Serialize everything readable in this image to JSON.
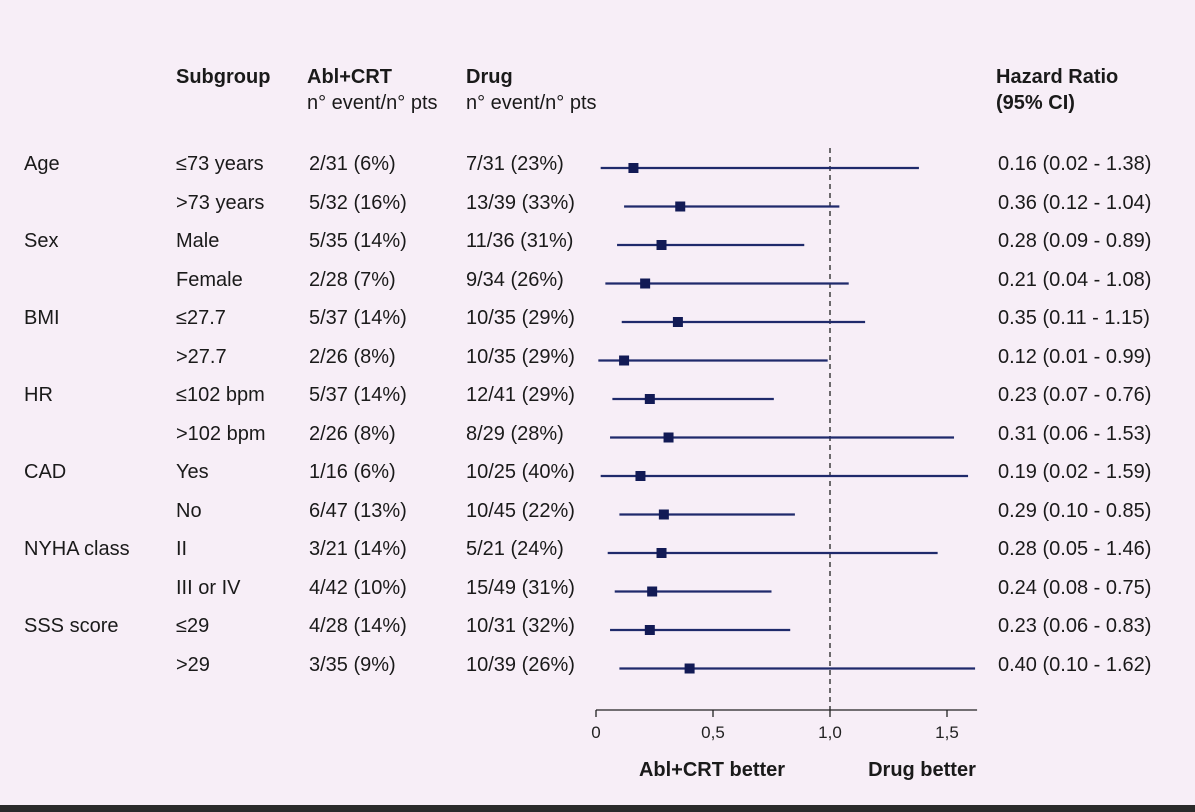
{
  "headers": {
    "subgroup": "Subgroup",
    "abl_title": "Abl+CRT",
    "abl_sub": "n° event/n° pts",
    "drug_title": "Drug",
    "drug_sub": "n° event/n° pts",
    "hr_title": "Hazard Ratio",
    "hr_sub": "(95% CI)"
  },
  "rows": [
    {
      "group": "Age",
      "subgroup": "≤73 years",
      "abl": "2/31 (6%)",
      "drug": "7/31 (23%)",
      "hr_text": "0.16 (0.02 - 1.38)"
    },
    {
      "group": "",
      "subgroup": ">73 years",
      "abl": "5/32 (16%)",
      "drug": "13/39 (33%)",
      "hr_text": "0.36 (0.12 - 1.04)"
    },
    {
      "group": "Sex",
      "subgroup": "Male",
      "abl": "5/35 (14%)",
      "drug": "11/36 (31%)",
      "hr_text": "0.28 (0.09 - 0.89)"
    },
    {
      "group": "",
      "subgroup": "Female",
      "abl": "2/28 (7%)",
      "drug": "9/34 (26%)",
      "hr_text": "0.21 (0.04 - 1.08)"
    },
    {
      "group": "BMI",
      "subgroup": "≤27.7",
      "abl": "5/37 (14%)",
      "drug": "10/35 (29%)",
      "hr_text": "0.35 (0.11 - 1.15)"
    },
    {
      "group": "",
      "subgroup": ">27.7",
      "abl": "2/26 (8%)",
      "drug": "10/35 (29%)",
      "hr_text": "0.12 (0.01 - 0.99)"
    },
    {
      "group": "HR",
      "subgroup": "≤102 bpm",
      "abl": "5/37 (14%)",
      "drug": "12/41 (29%)",
      "hr_text": "0.23 (0.07 - 0.76)"
    },
    {
      "group": "",
      "subgroup": ">102 bpm",
      "abl": "2/26 (8%)",
      "drug": "8/29 (28%)",
      "hr_text": "0.31 (0.06 - 1.53)"
    },
    {
      "group": "CAD",
      "subgroup": "Yes",
      "abl": "1/16 (6%)",
      "drug": "10/25 (40%)",
      "hr_text": "0.19 (0.02 - 1.59)"
    },
    {
      "group": "",
      "subgroup": "No",
      "abl": "6/47 (13%)",
      "drug": "10/45 (22%)",
      "hr_text": "0.29 (0.10 - 0.85)"
    },
    {
      "group": "NYHA class",
      "subgroup": "II",
      "abl": "3/21 (14%)",
      "drug": "5/21 (24%)",
      "hr_text": "0.28 (0.05 - 1.46)"
    },
    {
      "group": "",
      "subgroup": "III or IV",
      "abl": "4/42 (10%)",
      "drug": "15/49 (31%)",
      "hr_text": "0.24 (0.08 - 0.75)"
    },
    {
      "group": "SSS score",
      "subgroup": "≤29",
      "abl": "4/28 (14%)",
      "drug": "10/31 (32%)",
      "hr_text": "0.23 (0.06 - 0.83)"
    },
    {
      "group": "",
      "subgroup": ">29",
      "abl": "3/35 (9%)",
      "drug": "10/39 (26%)",
      "hr_text": "0.40 (0.10 - 1.62)"
    }
  ],
  "chart_data": {
    "type": "forest",
    "xlim": [
      0,
      1.62
    ],
    "ticks": [
      0,
      0.5,
      1.0,
      1.5
    ],
    "tick_labels": [
      "0",
      "0,5",
      "1,0",
      "1,5"
    ],
    "reference_line": 1.0,
    "label_left": "Abl+CRT better",
    "label_right": "Drug better",
    "series": [
      {
        "hr": 0.16,
        "lo": 0.02,
        "hi": 1.38
      },
      {
        "hr": 0.36,
        "lo": 0.12,
        "hi": 1.04
      },
      {
        "hr": 0.28,
        "lo": 0.09,
        "hi": 0.89
      },
      {
        "hr": 0.21,
        "lo": 0.04,
        "hi": 1.08
      },
      {
        "hr": 0.35,
        "lo": 0.11,
        "hi": 1.15
      },
      {
        "hr": 0.12,
        "lo": 0.01,
        "hi": 0.99
      },
      {
        "hr": 0.23,
        "lo": 0.07,
        "hi": 0.76
      },
      {
        "hr": 0.31,
        "lo": 0.06,
        "hi": 1.53
      },
      {
        "hr": 0.19,
        "lo": 0.02,
        "hi": 1.59
      },
      {
        "hr": 0.29,
        "lo": 0.1,
        "hi": 0.85
      },
      {
        "hr": 0.28,
        "lo": 0.05,
        "hi": 1.46
      },
      {
        "hr": 0.24,
        "lo": 0.08,
        "hi": 0.75
      },
      {
        "hr": 0.23,
        "lo": 0.06,
        "hi": 0.83
      },
      {
        "hr": 0.4,
        "lo": 0.1,
        "hi": 1.62
      }
    ],
    "colors": {
      "line": "#1f2a6b",
      "marker": "#121a55",
      "axis": "#222222"
    }
  }
}
